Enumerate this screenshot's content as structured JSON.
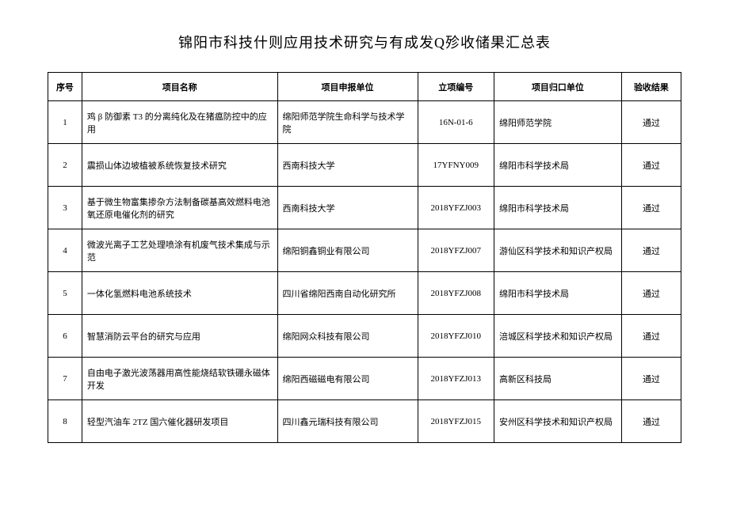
{
  "title": "锦阳市科技什则应用技术研究与有成发Q殄收储果汇总表",
  "table": {
    "headers": {
      "seq": "序号",
      "project_name": "项目名称",
      "apply_org": "项目申报单位",
      "code": "立项编号",
      "dept": "项目归口单位",
      "result": "验收结果"
    },
    "rows": [
      {
        "seq": "1",
        "project_name": "鸡 β 防御素 T3 的分离纯化及在猪瘟防控中的应用",
        "apply_org": "绵阳师范学院生命科学与技术学院",
        "code": "16N-01-6",
        "dept": "绵阳师范学院",
        "result": "通过"
      },
      {
        "seq": "2",
        "project_name": "震损山体边坡植被系统恢复技术研究",
        "apply_org": "西南科技大学",
        "code": "17YFNY009",
        "dept": "绵阳市科学技术局",
        "result": "通过"
      },
      {
        "seq": "3",
        "project_name": "基于微生物富集掺杂方法制备碳基高效燃料电池氧还原电催化剂的研究",
        "apply_org": "西南科技大学",
        "code": "2018YFZJ003",
        "dept": "绵阳市科学技术局",
        "result": "通过"
      },
      {
        "seq": "4",
        "project_name": "微波光离子工艺处理喷涂有机废气技术集成与示范",
        "apply_org": "绵阳铜鑫铜业有限公司",
        "code": "2018YFZJ007",
        "dept": "游仙区科学技术和知识产权局",
        "result": "通过"
      },
      {
        "seq": "5",
        "project_name": "一体化氢燃料电池系统技术",
        "apply_org": "四川省绵阳西南自动化研究所",
        "code": "2018YFZJ008",
        "dept": "绵阳市科学技术局",
        "result": "通过"
      },
      {
        "seq": "6",
        "project_name": "智慧消防云平台的研究与应用",
        "apply_org": "绵阳网众科技有限公司",
        "code": "2018YFZJ010",
        "dept": "涪城区科学技术和知识产权局",
        "result": "通过"
      },
      {
        "seq": "7",
        "project_name": "自由电子激光波荡器用高性能烧结软铁硼永磁体开发",
        "apply_org": "绵阳西磁磁电有限公司",
        "code": "2018YFZJ013",
        "dept": "高新区科技局",
        "result": "通过"
      },
      {
        "seq": "8",
        "project_name": "轻型汽油车 2TZ 国六催化器研发项目",
        "apply_org": "四川鑫元瑞科技有限公司",
        "code": "2018YFZJ015",
        "dept": "安州区科学技术和知识产权局",
        "result": "通过"
      }
    ]
  }
}
